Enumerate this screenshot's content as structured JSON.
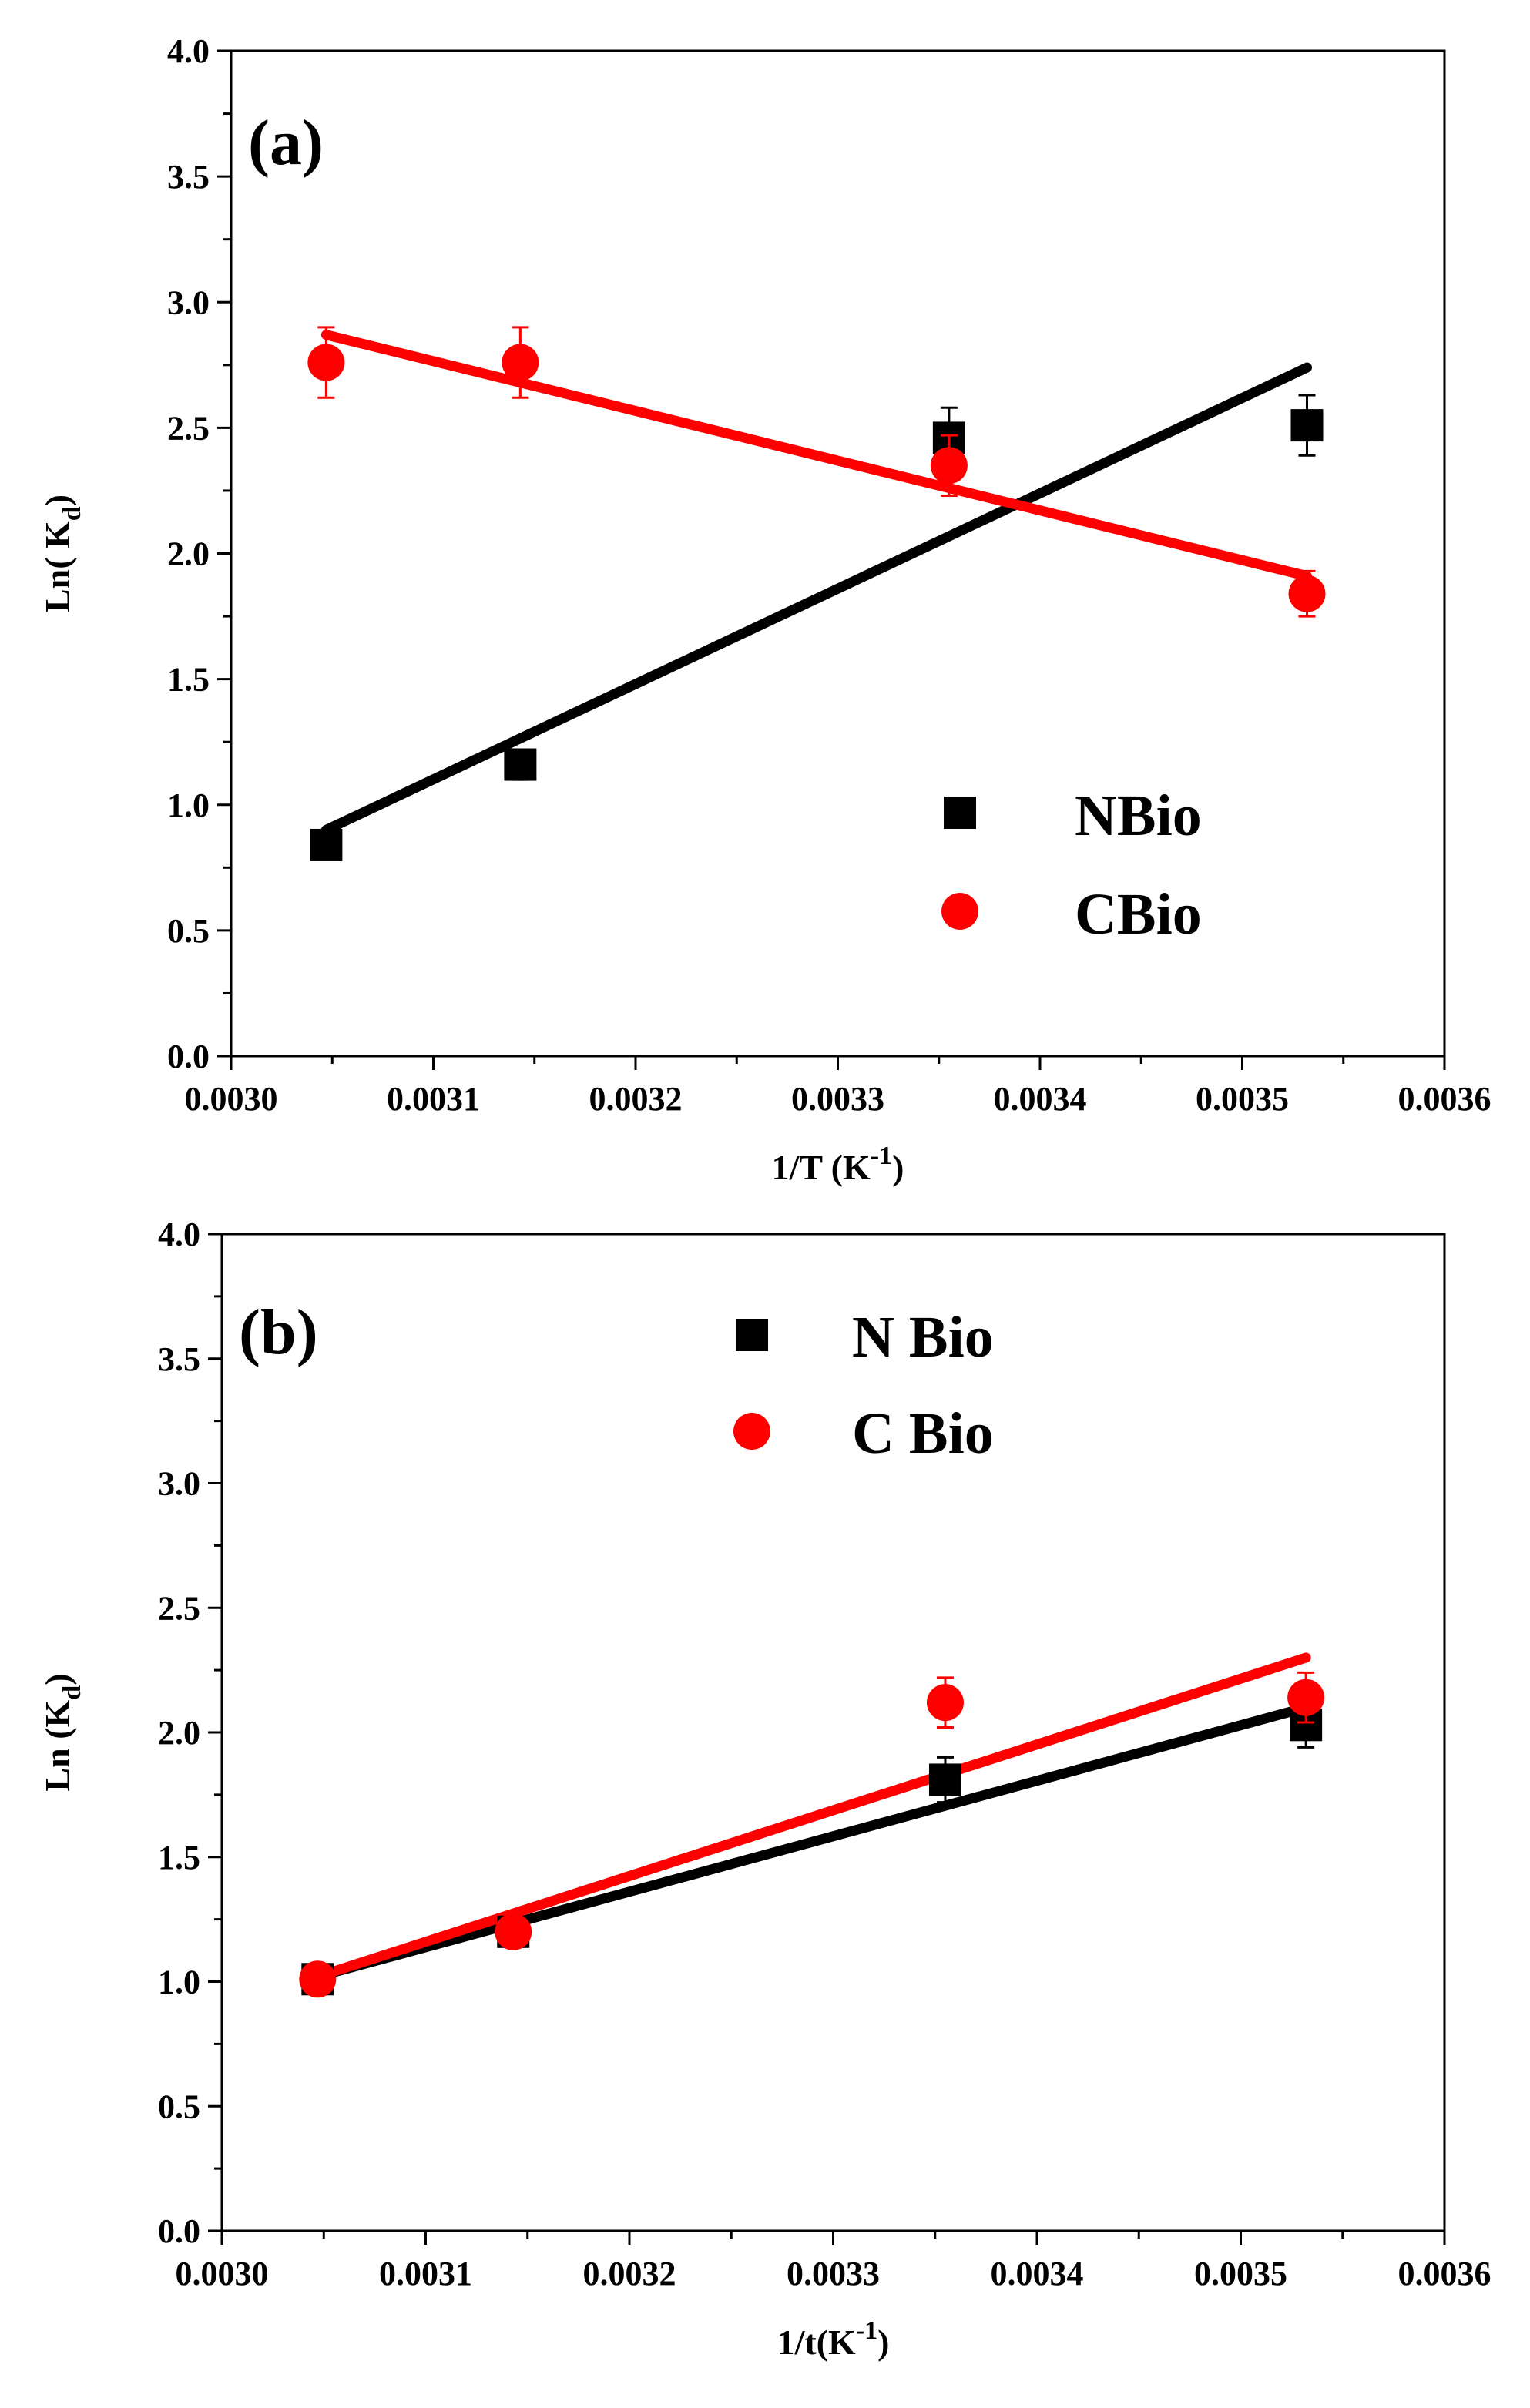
{
  "chart_data": [
    {
      "type": "scatter",
      "panel_label": "(a)",
      "xlabel": {
        "main": "1/T (K",
        "sup": "-1",
        "tail": ")"
      },
      "ylabel": {
        "main": "Ln( K",
        "sub": "d",
        "tail": ")"
      },
      "xlim": [
        0.003,
        0.0036
      ],
      "ylim": [
        0.0,
        4.0
      ],
      "xticks": [
        "0.0030",
        "0.0031",
        "0.0032",
        "0.0033",
        "0.0034",
        "0.0035",
        "0.0036"
      ],
      "yticks": [
        "0.0",
        "0.5",
        "1.0",
        "1.5",
        "2.0",
        "2.5",
        "3.0",
        "3.5",
        "4.0"
      ],
      "grid": false,
      "legend_position": "bottom-right",
      "series": [
        {
          "name": "NBio",
          "marker": "square",
          "color": "#000000",
          "x": [
            0.003047,
            0.003143,
            0.003355,
            0.003532
          ],
          "y": [
            0.84,
            1.16,
            2.46,
            2.51
          ],
          "err": [
            0.04,
            0.06,
            0.12,
            0.12
          ],
          "fit_x": [
            0.003047,
            0.003532
          ],
          "fit_y": [
            0.9,
            2.74
          ]
        },
        {
          "name": "CBio",
          "marker": "circle",
          "color": "#ff0000",
          "x": [
            0.003047,
            0.003143,
            0.003355,
            0.003532
          ],
          "y": [
            2.76,
            2.76,
            2.35,
            1.84
          ],
          "err": [
            0.14,
            0.14,
            0.12,
            0.09
          ],
          "fit_x": [
            0.003047,
            0.003532
          ],
          "fit_y": [
            2.87,
            1.91
          ]
        }
      ]
    },
    {
      "type": "scatter",
      "panel_label": "(b)",
      "xlabel": {
        "main": "1/t(K",
        "sup": "-1",
        "tail": ")"
      },
      "ylabel": {
        "main": "Ln (K",
        "sub": "d",
        "tail": ")"
      },
      "xlim": [
        0.003,
        0.0036
      ],
      "ylim": [
        0.0,
        4.0
      ],
      "xticks": [
        "0.0030",
        "0.0031",
        "0.0032",
        "0.0033",
        "0.0034",
        "0.0035",
        "0.0036"
      ],
      "yticks": [
        "0.0",
        "0.5",
        "1.0",
        "1.5",
        "2.0",
        "2.5",
        "3.0",
        "3.5",
        "4.0"
      ],
      "grid": false,
      "legend_position": "top-center",
      "series": [
        {
          "name": "N Bio",
          "marker": "square",
          "color": "#000000",
          "x": [
            0.003047,
            0.003143,
            0.003355,
            0.003532
          ],
          "y": [
            1.01,
            1.2,
            1.81,
            2.03
          ],
          "err": [
            0.03,
            0.03,
            0.09,
            0.09
          ],
          "fit_x": [
            0.003047,
            0.003532
          ],
          "fit_y": [
            1.02,
            2.1
          ]
        },
        {
          "name": "C Bio",
          "marker": "circle",
          "color": "#ff0000",
          "x": [
            0.003047,
            0.003143,
            0.003355,
            0.003532
          ],
          "y": [
            1.01,
            1.2,
            2.12,
            2.14
          ],
          "err": [
            0.03,
            0.03,
            0.1,
            0.1
          ],
          "fit_x": [
            0.003047,
            0.003532
          ],
          "fit_y": [
            1.02,
            2.3
          ]
        }
      ]
    }
  ]
}
